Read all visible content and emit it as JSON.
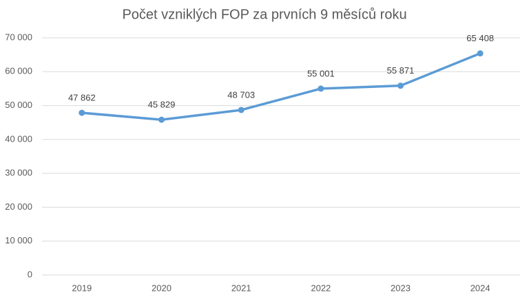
{
  "chart_data": {
    "type": "line",
    "title": "Počet vzniklých FOP za prvních 9 měsíců roku",
    "categories": [
      "2019",
      "2020",
      "2021",
      "2022",
      "2023",
      "2024"
    ],
    "values": [
      47862,
      45829,
      48703,
      55001,
      55871,
      65408
    ],
    "value_labels": [
      "47 862",
      "45 829",
      "48 703",
      "55 001",
      "55 871",
      "65 408"
    ],
    "color": "#5b9bd5",
    "ylim": [
      0,
      70000
    ],
    "yticks": [
      0,
      {
        "value": 10000,
        "label": "10 000"
      },
      {
        "value": 20000,
        "label": "20 000"
      },
      {
        "value": 30000,
        "label": "30 000"
      },
      {
        "value": 40000,
        "label": "40 000"
      },
      {
        "value": 50000,
        "label": "50 000"
      },
      {
        "value": 60000,
        "label": "60 000"
      },
      {
        "value": 70000,
        "label": "70 000"
      }
    ],
    "grid": true
  }
}
